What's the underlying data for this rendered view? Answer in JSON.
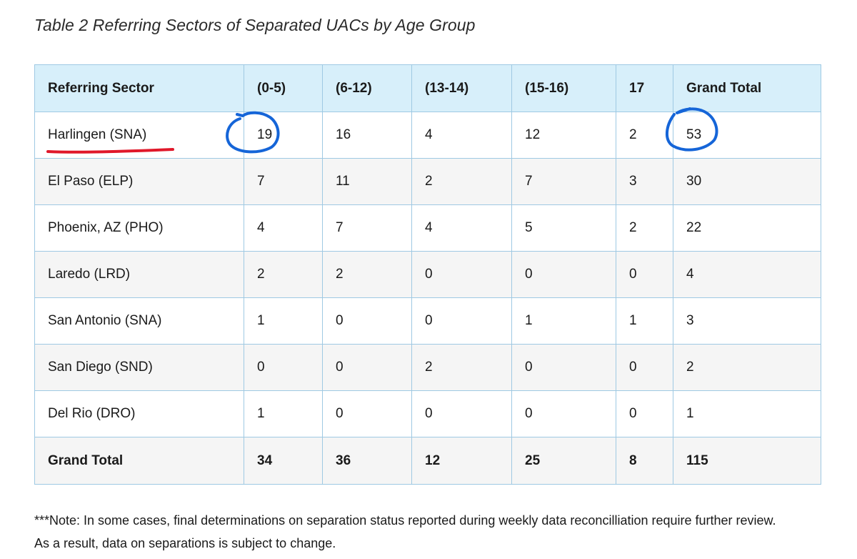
{
  "title": "Table 2 Referring Sectors of Separated UACs by Age Group",
  "table": {
    "headers": [
      "Referring Sector",
      "(0-5)",
      "(6-12)",
      "(13-14)",
      "(15-16)",
      "17",
      "Grand Total"
    ],
    "rows": [
      [
        "Harlingen (SNA)",
        "19",
        "16",
        "4",
        "12",
        "2",
        "53"
      ],
      [
        "El Paso (ELP)",
        "7",
        "11",
        "2",
        "7",
        "3",
        "30"
      ],
      [
        "Phoenix, AZ (PHO)",
        "4",
        "7",
        "4",
        "5",
        "2",
        "22"
      ],
      [
        "Laredo (LRD)",
        "2",
        "2",
        "0",
        "0",
        "0",
        "4"
      ],
      [
        "San Antonio (SNA)",
        "1",
        "0",
        "0",
        "1",
        "1",
        "3"
      ],
      [
        "San Diego (SND)",
        "0",
        "0",
        "2",
        "0",
        "0",
        "2"
      ],
      [
        "Del Rio (DRO)",
        "1",
        "0",
        "0",
        "0",
        "0",
        "1"
      ]
    ],
    "total": [
      "Grand Total",
      "34",
      "36",
      "12",
      "25",
      "8",
      "115"
    ]
  },
  "note": {
    "line1": "***Note: In some cases, final determinations on separation status reported during weekly data reconcilliation require further review.",
    "line2": "As a result, data on separations is subject to change."
  },
  "colors": {
    "header_bg": "#d7effa",
    "border": "#9fc9e3",
    "annotation_red": "#e0182a",
    "annotation_blue": "#1565d8"
  }
}
